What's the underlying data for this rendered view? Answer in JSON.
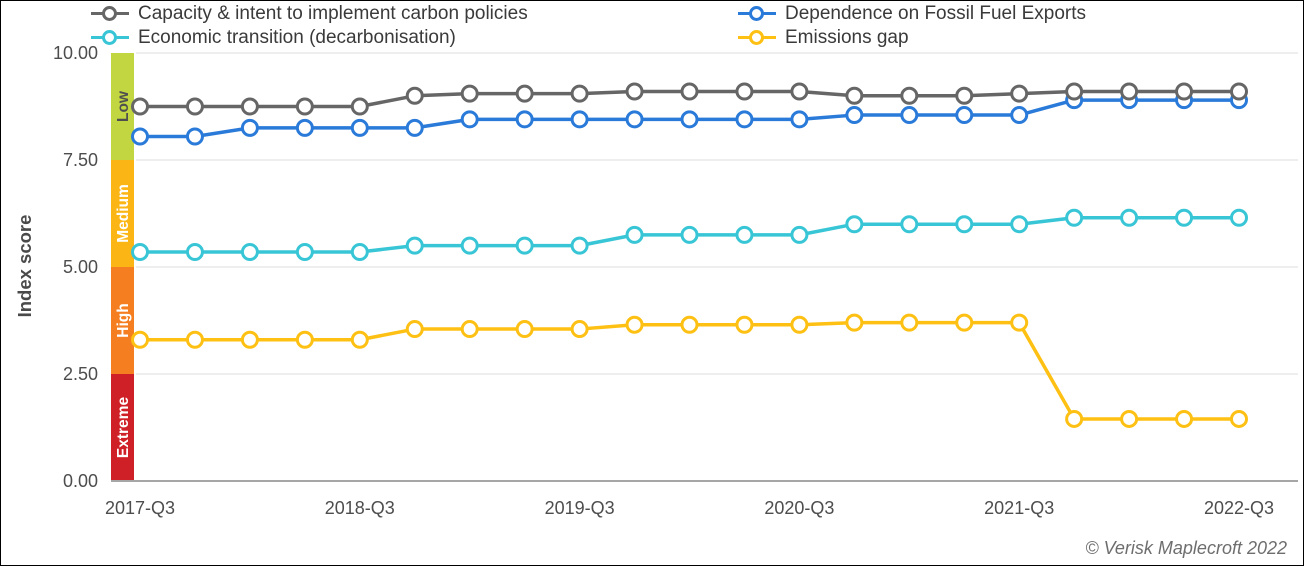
{
  "chart_data": {
    "type": "line",
    "title": "",
    "xlabel": "",
    "ylabel": "Index score",
    "ylim": [
      0,
      10
    ],
    "grid": true,
    "legend_position": "top",
    "y_ticks": [
      10,
      7.5,
      5,
      2.5,
      0
    ],
    "y_tick_labels": [
      "10.00",
      "7.50",
      "5.00",
      "2.50",
      "0.00"
    ],
    "categories": [
      "2017-Q3",
      "2017-Q4",
      "2018-Q1",
      "2018-Q2",
      "2018-Q3",
      "2018-Q4",
      "2019-Q1",
      "2019-Q2",
      "2019-Q3",
      "2019-Q4",
      "2020-Q1",
      "2020-Q2",
      "2020-Q3",
      "2020-Q4",
      "2021-Q1",
      "2021-Q2",
      "2021-Q3",
      "2021-Q4",
      "2022-Q1",
      "2022-Q2",
      "2022-Q3"
    ],
    "x_tick_indices": [
      0,
      4,
      8,
      12,
      16,
      20
    ],
    "x_tick_labels": [
      "2017-Q3",
      "2018-Q3",
      "2019-Q3",
      "2020-Q3",
      "2021-Q3",
      "2022-Q3"
    ],
    "bands": [
      {
        "label": "Low",
        "from": 7.5,
        "to": 10,
        "color": "#c2d642",
        "label_color": "#4f4f4f"
      },
      {
        "label": "Medium",
        "from": 5,
        "to": 7.5,
        "color": "#fbb616",
        "label_color": "#ffffff"
      },
      {
        "label": "High",
        "from": 2.5,
        "to": 5,
        "color": "#f57e20",
        "label_color": "#ffffff"
      },
      {
        "label": "Extreme",
        "from": 0,
        "to": 2.5,
        "color": "#d02027",
        "label_color": "#ffffff"
      }
    ],
    "series": [
      {
        "name": "Capacity & intent to implement carbon policies",
        "color": "#666666",
        "values": [
          8.75,
          8.75,
          8.75,
          8.75,
          8.75,
          9.0,
          9.05,
          9.05,
          9.05,
          9.1,
          9.1,
          9.1,
          9.1,
          9.0,
          9.0,
          9.0,
          9.05,
          9.1,
          9.1,
          9.1,
          9.1
        ]
      },
      {
        "name": "Dependence on Fossil Fuel Exports",
        "color": "#2a7ad9",
        "values": [
          8.05,
          8.05,
          8.25,
          8.25,
          8.25,
          8.25,
          8.45,
          8.45,
          8.45,
          8.45,
          8.45,
          8.45,
          8.45,
          8.55,
          8.55,
          8.55,
          8.55,
          8.9,
          8.9,
          8.9,
          8.9
        ]
      },
      {
        "name": "Economic transition (decarbonisation)",
        "color": "#38c6d6",
        "values": [
          5.35,
          5.35,
          5.35,
          5.35,
          5.35,
          5.5,
          5.5,
          5.5,
          5.5,
          5.75,
          5.75,
          5.75,
          5.75,
          6.0,
          6.0,
          6.0,
          6.0,
          6.15,
          6.15,
          6.15,
          6.15
        ]
      },
      {
        "name": "Emissions gap",
        "color": "#fdc013",
        "values": [
          3.3,
          3.3,
          3.3,
          3.3,
          3.3,
          3.55,
          3.55,
          3.55,
          3.55,
          3.65,
          3.65,
          3.65,
          3.65,
          3.7,
          3.7,
          3.7,
          3.7,
          1.45,
          1.45,
          1.45,
          1.45
        ]
      }
    ]
  },
  "footer": {
    "copyright": "© Verisk Maplecroft 2022"
  }
}
